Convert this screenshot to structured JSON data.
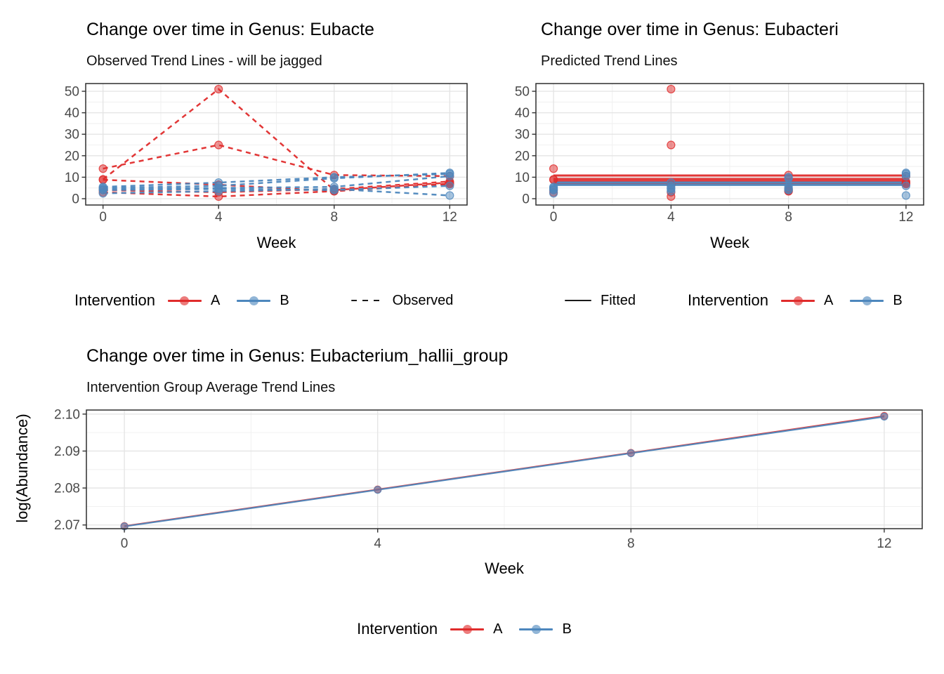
{
  "page": {
    "background": "#ffffff"
  },
  "colors": {
    "intervention_a": "#e02c2c",
    "intervention_b": "#4d87bd",
    "linetype_key": "#1a1a1a",
    "grid_major": "#e4e4e4",
    "grid_minor": "#f1f1f1",
    "panel_border": "#2e2e2e",
    "tick_text": "#4a4a4a"
  },
  "chart_data": [
    {
      "id": "observed",
      "type": "line",
      "title": "Change over time in Genus: Eubacte",
      "subtitle": "Observed Trend Lines - will be jagged",
      "xlabel": "Week",
      "x": [
        0,
        4,
        8,
        12
      ],
      "xtick_labels": [
        "0",
        "4",
        "8",
        "12"
      ],
      "yticks": [
        0,
        10,
        20,
        30,
        40,
        50
      ],
      "ytick_labels": [
        "0",
        "10",
        "20",
        "30",
        "40",
        "50"
      ],
      "xlim": [
        -0.6,
        12.6
      ],
      "ylim": [
        -2.94,
        53.6
      ],
      "minor_x": [
        2,
        6,
        10
      ],
      "minor_y": [
        5,
        15,
        25,
        35,
        45
      ],
      "line_dash": "7,6",
      "draw_lines": true,
      "legend": {
        "title": "Intervention",
        "item_a": "A",
        "item_b": "B",
        "linetype_label": "Observed"
      },
      "series": [
        {
          "group": "A",
          "values": [
            9,
            51,
            4,
            7.5
          ]
        },
        {
          "group": "A",
          "values": [
            14,
            25,
            11,
            10.5
          ]
        },
        {
          "group": "A",
          "values": [
            8.8,
            6.5,
            3.5,
            7
          ]
        },
        {
          "group": "A",
          "values": [
            4,
            3,
            4.5,
            8
          ]
        },
        {
          "group": "A",
          "values": [
            3,
            1,
            3.5,
            6.8
          ]
        },
        {
          "group": "B",
          "values": [
            5.5,
            7.5,
            10,
            11.5
          ]
        },
        {
          "group": "B",
          "values": [
            5,
            6,
            9.5,
            12
          ]
        },
        {
          "group": "B",
          "values": [
            4.5,
            5,
            5.5,
            10.5
          ]
        },
        {
          "group": "B",
          "values": [
            4,
            4.5,
            4,
            6
          ]
        },
        {
          "group": "B",
          "values": [
            2.5,
            3.5,
            4.5,
            1.5
          ]
        }
      ]
    },
    {
      "id": "predicted",
      "type": "scatter",
      "title": "Change over time in Genus: Eubacteri",
      "subtitle": "Predicted Trend Lines",
      "xlabel": "Week",
      "x": [
        0,
        4,
        8,
        12
      ],
      "xtick_labels": [
        "0",
        "4",
        "8",
        "12"
      ],
      "yticks": [
        0,
        10,
        20,
        30,
        40,
        50
      ],
      "ytick_labels": [
        "0",
        "10",
        "20",
        "30",
        "40",
        "50"
      ],
      "xlim": [
        -0.6,
        12.6
      ],
      "ylim": [
        -2.94,
        53.6
      ],
      "minor_x": [
        2,
        6,
        10
      ],
      "minor_y": [
        5,
        15,
        25,
        35,
        45
      ],
      "line_dash": null,
      "draw_lines": false,
      "legend": {
        "title": "Intervention",
        "item_a": "A",
        "item_b": "B",
        "linetype_label": "Fitted"
      },
      "fitted": [
        {
          "group": "A",
          "value": 10.8
        },
        {
          "group": "A",
          "value": 9.2
        },
        {
          "group": "A",
          "value": 8.2
        },
        {
          "group": "A",
          "value": 7.0
        },
        {
          "group": "B",
          "value": 7.5
        },
        {
          "group": "B",
          "value": 6.4
        }
      ],
      "series": [
        {
          "group": "A",
          "values": [
            9,
            51,
            4,
            7.5
          ]
        },
        {
          "group": "A",
          "values": [
            14,
            25,
            11,
            10.5
          ]
        },
        {
          "group": "A",
          "values": [
            8.8,
            6.5,
            3.5,
            7
          ]
        },
        {
          "group": "A",
          "values": [
            4,
            3,
            4.5,
            8
          ]
        },
        {
          "group": "A",
          "values": [
            3,
            1,
            3.5,
            6.8
          ]
        },
        {
          "group": "B",
          "values": [
            5.5,
            7.5,
            10,
            11.5
          ]
        },
        {
          "group": "B",
          "values": [
            5,
            6,
            9.5,
            12
          ]
        },
        {
          "group": "B",
          "values": [
            4.5,
            5,
            5.5,
            10.5
          ]
        },
        {
          "group": "B",
          "values": [
            4,
            4.5,
            4,
            6
          ]
        },
        {
          "group": "B",
          "values": [
            2.5,
            3.5,
            4.5,
            1.5
          ]
        }
      ]
    },
    {
      "id": "average",
      "type": "line",
      "title": "Change over time in Genus: Eubacterium_hallii_group",
      "subtitle": "Intervention Group Average Trend Lines",
      "xlabel": "Week",
      "ylabel": "log(Abundance)",
      "x": [
        0,
        4,
        8,
        12
      ],
      "xtick_labels": [
        "0",
        "4",
        "8",
        "12"
      ],
      "yticks": [
        2.07,
        2.08,
        2.09,
        2.1
      ],
      "ytick_labels": [
        "2.07",
        "2.08",
        "2.09",
        "2.10"
      ],
      "xlim": [
        -0.6,
        12.6
      ],
      "ylim": [
        2.069,
        2.1011
      ],
      "minor_x": [
        2,
        6,
        10
      ],
      "minor_y": [
        2.075,
        2.085,
        2.095
      ],
      "line_dash": null,
      "draw_lines": true,
      "legend": {
        "title": "Intervention",
        "item_a": "A",
        "item_b": "B"
      },
      "series": [
        {
          "group": "A",
          "values": [
            2.0697,
            2.0796,
            2.0895,
            2.0995
          ]
        },
        {
          "group": "B",
          "values": [
            2.0696,
            2.0795,
            2.0894,
            2.0993
          ]
        }
      ]
    }
  ]
}
